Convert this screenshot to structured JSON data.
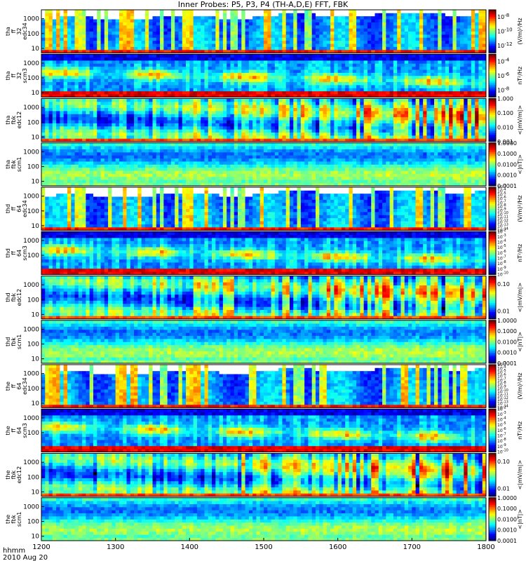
{
  "title": "Inner Probes: P5, P3, P4 (TH-A,D,E) FFT, FBK",
  "footer": {
    "time_label": "hhmm",
    "date_label": "2010 Aug 20"
  },
  "chart_data": {
    "type": "heatmap",
    "title": "Inner Probes: P5, P3, P4 (TH-A,D,E) FFT, FBK",
    "x_ticks": [
      "1200",
      "1300",
      "1400",
      "1500",
      "1600",
      "1700",
      "1800"
    ],
    "x_range": [
      1200,
      1800
    ],
    "panels": [
      {
        "ylabel": [
          "tha",
          "ff",
          "32",
          "edc34"
        ],
        "yticks": [
          "1000",
          "100",
          "10"
        ],
        "ylog": [
          5,
          4000
        ],
        "cbar_ticks": [
          "10^-8",
          "10^-10",
          "10^-12"
        ],
        "cbar_log": [
          -13,
          -7
        ],
        "cbar_label": "(V/m)²/Hz",
        "kind": "fft_e"
      },
      {
        "ylabel": [
          "tha",
          "ff",
          "32",
          "scm3"
        ],
        "yticks": [
          "1000",
          "100",
          "10"
        ],
        "ylog": [
          5,
          4000
        ],
        "cbar_ticks": [
          "10^-4",
          "10^-6",
          "10^-8"
        ],
        "cbar_log": [
          -9,
          -3
        ],
        "cbar_label": "nT²/Hz",
        "kind": "fft_b"
      },
      {
        "ylabel": [
          "tha",
          "fbk",
          "edc12"
        ],
        "yticks": [
          "1000",
          "100",
          "10"
        ],
        "ylog": [
          5,
          4000
        ],
        "cbar_ticks": [
          "1.000",
          "0.100",
          "0.010",
          "0.001"
        ],
        "cbar_log": [
          -3,
          0
        ],
        "cbar_label": "<|mV/m|>",
        "kind": "fbk_e"
      },
      {
        "ylabel": [
          "tha",
          "fbk",
          "scm1"
        ],
        "yticks": [
          "1000",
          "100",
          "10"
        ],
        "ylog": [
          5,
          4000
        ],
        "cbar_ticks": [
          "1.0000",
          "0.1000",
          "0.0100",
          "0.0010",
          "0.0001"
        ],
        "cbar_log": [
          -4,
          0
        ],
        "cbar_label": "<|nT|>",
        "kind": "fbk_b"
      },
      {
        "ylabel": [
          "thd",
          "ff",
          "64",
          "edc34"
        ],
        "yticks": [
          "1000",
          "100",
          "10"
        ],
        "ylog": [
          5,
          4000
        ],
        "cbar_ticks": [
          "10^-3",
          "10^-4",
          "10^-5",
          "10^-6",
          "10^-7",
          "10^-8",
          "10^-9",
          "10^-10",
          "10^-11",
          "10^-12",
          "10^-13",
          "10^-14"
        ],
        "cbar_log": [
          -14,
          -3
        ],
        "cbar_label": "(V/m)²/Hz",
        "kind": "fft_e"
      },
      {
        "ylabel": [
          "thd",
          "ff",
          "64",
          "scm3"
        ],
        "yticks": [
          "1000",
          "100"
        ],
        "ylog": [
          5,
          4000
        ],
        "cbar_ticks": [
          "10^-2",
          "10^-3",
          "10^-4",
          "10^-5",
          "10^-6",
          "10^-7",
          "10^-8",
          "10^-9",
          "10^-10"
        ],
        "cbar_log": [
          -10,
          -2
        ],
        "cbar_label": "nT²/Hz",
        "kind": "fft_b"
      },
      {
        "ylabel": [
          "thd",
          "fbk",
          "edc12"
        ],
        "yticks": [
          "1000",
          "100",
          "10"
        ],
        "ylog": [
          5,
          4000
        ],
        "cbar_ticks": [
          "0.10",
          "0.01"
        ],
        "cbar_log": [
          -2.3,
          -0.7
        ],
        "cbar_label": "<|mV/m|>",
        "kind": "fbk_e"
      },
      {
        "ylabel": [
          "thd",
          "fbk",
          "scm1"
        ],
        "yticks": [
          "1000",
          "100",
          "10"
        ],
        "ylog": [
          5,
          4000
        ],
        "cbar_ticks": [
          "1.0000",
          "0.1000",
          "0.0100",
          "0.0010",
          "0.0001"
        ],
        "cbar_log": [
          -4,
          0
        ],
        "cbar_label": "<|nT|>",
        "kind": "fbk_b"
      },
      {
        "ylabel": [
          "the",
          "ff",
          "64",
          "edc34"
        ],
        "yticks": [
          "1000",
          "100",
          "10"
        ],
        "ylog": [
          5,
          4000
        ],
        "cbar_ticks": [
          "10^-3",
          "10^-4",
          "10^-5",
          "10^-6",
          "10^-7",
          "10^-8",
          "10^-9",
          "10^-10",
          "10^-11",
          "10^-12",
          "10^-13",
          "10^-14"
        ],
        "cbar_log": [
          -14,
          -3
        ],
        "cbar_label": "(V/m)²/Hz",
        "kind": "fft_e"
      },
      {
        "ylabel": [
          "the",
          "ff",
          "64",
          "scm3"
        ],
        "yticks": [
          "1000",
          "100"
        ],
        "ylog": [
          5,
          4000
        ],
        "cbar_ticks": [
          "10^-2",
          "10^-3",
          "10^-4",
          "10^-5",
          "10^-6",
          "10^-7",
          "10^-8",
          "10^-9",
          "10^-10"
        ],
        "cbar_log": [
          -10,
          -2
        ],
        "cbar_label": "nT²/Hz",
        "kind": "fft_b"
      },
      {
        "ylabel": [
          "the",
          "fbk",
          "edc12"
        ],
        "yticks": [
          "1000",
          "100",
          "10"
        ],
        "ylog": [
          5,
          4000
        ],
        "cbar_ticks": [
          "0.10",
          "0.01"
        ],
        "cbar_log": [
          -2.3,
          -0.7
        ],
        "cbar_label": "<|mV/m|>",
        "kind": "fbk_e"
      },
      {
        "ylabel": [
          "the",
          "fbk",
          "scm1"
        ],
        "yticks": [
          "1000",
          "100",
          "10"
        ],
        "ylog": [
          5,
          4000
        ],
        "cbar_ticks": [
          "1.0000",
          "0.1000",
          "0.0100",
          "0.0010",
          "0.0001"
        ],
        "cbar_log": [
          -4,
          0
        ],
        "cbar_label": "<|nT|>",
        "kind": "fbk_b"
      }
    ]
  }
}
